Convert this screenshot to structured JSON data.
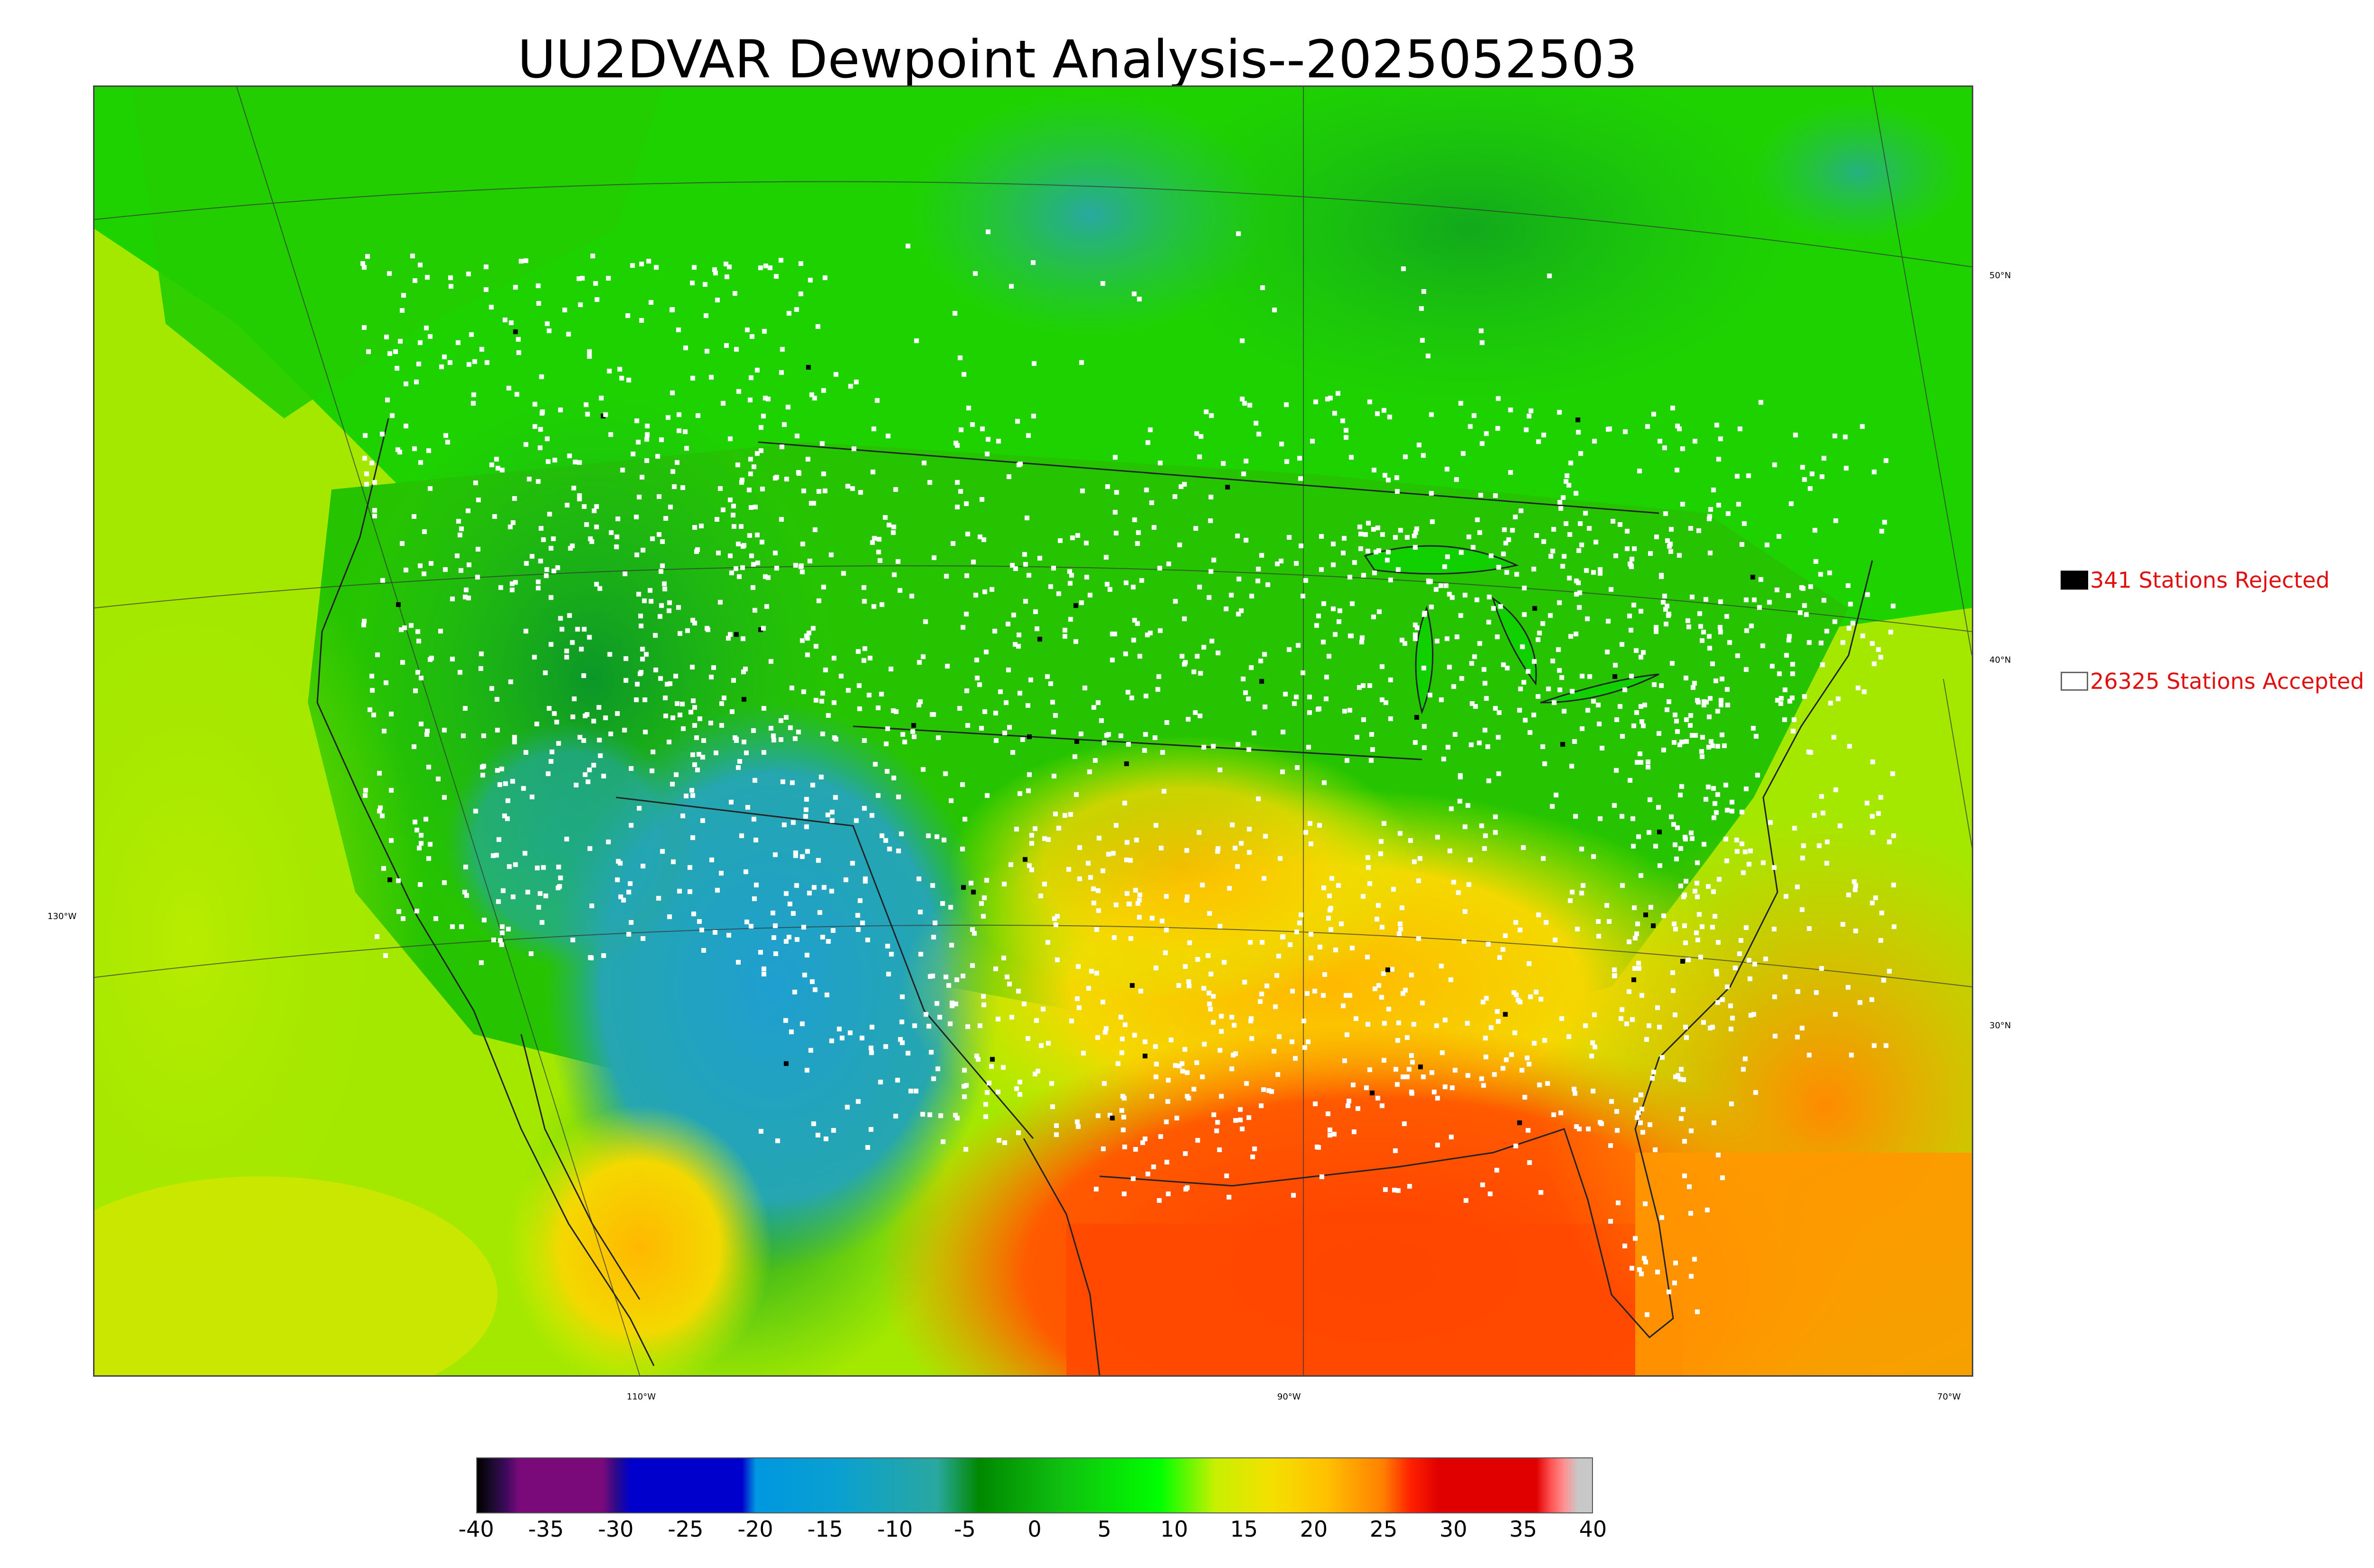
{
  "title": "UU2DVAR Dewpoint Analysis--2025052503",
  "map": {
    "longitude_labels": [
      "110°W",
      "90°W",
      "70°W"
    ],
    "left_latitude_labels": [
      "130°W"
    ],
    "right_latitude_labels": [
      "50°N",
      "40°N",
      "30°N"
    ],
    "field_colors": {
      "ocean_west": "#a6ea00",
      "ocean_gulf": "#ff4a00",
      "atlantic": "#ff9a00",
      "plains_green": "#2ec800",
      "canada_green": "#18d400",
      "dry_blue": "#20a0c0",
      "deep_green": "#0a9a28",
      "yellow_south": "#f4d000",
      "station_accepted": "#ffffff",
      "station_rejected": "#000000"
    }
  },
  "legend": {
    "rejected_label": "341 Stations Rejected",
    "accepted_label": "26325 Stations Accepted",
    "rejected_color": "#000000",
    "accepted_color": "#ffffff",
    "label_color": "#e01010"
  },
  "colorbar": {
    "min": -40,
    "max": 40,
    "tick_labels": [
      "-40",
      "-35",
      "-30",
      "-25",
      "-20",
      "-15",
      "-10",
      "-5",
      "0",
      "5",
      "10",
      "15",
      "20",
      "25",
      "30",
      "35",
      "40"
    ],
    "stops": [
      {
        "value": -40,
        "color": "#000000"
      },
      {
        "value": -39,
        "color": "#1a0a2a"
      },
      {
        "value": -38,
        "color": "#3a0a5a"
      },
      {
        "value": -37,
        "color": "#7a0a7a"
      },
      {
        "value": -31,
        "color": "#7a0a7a"
      },
      {
        "value": -30,
        "color": "#2a0a8a"
      },
      {
        "value": -29,
        "color": "#0000cc"
      },
      {
        "value": -21,
        "color": "#0000cc"
      },
      {
        "value": -20,
        "color": "#0098e0"
      },
      {
        "value": -14,
        "color": "#0aa0d0"
      },
      {
        "value": -7,
        "color": "#2aa8a0"
      },
      {
        "value": -4,
        "color": "#008800"
      },
      {
        "value": 2,
        "color": "#10c010"
      },
      {
        "value": 9,
        "color": "#00ff00"
      },
      {
        "value": 13,
        "color": "#c8f000"
      },
      {
        "value": 17,
        "color": "#f4e000"
      },
      {
        "value": 21,
        "color": "#ffc000"
      },
      {
        "value": 25,
        "color": "#ff8000"
      },
      {
        "value": 27,
        "color": "#ff2000"
      },
      {
        "value": 29,
        "color": "#e00000"
      },
      {
        "value": 36,
        "color": "#e00000"
      },
      {
        "value": 37,
        "color": "#ff5050"
      },
      {
        "value": 38,
        "color": "#ff9090"
      },
      {
        "value": 39,
        "color": "#c8c8c8"
      },
      {
        "value": 40,
        "color": "#c8c8c8"
      }
    ]
  }
}
